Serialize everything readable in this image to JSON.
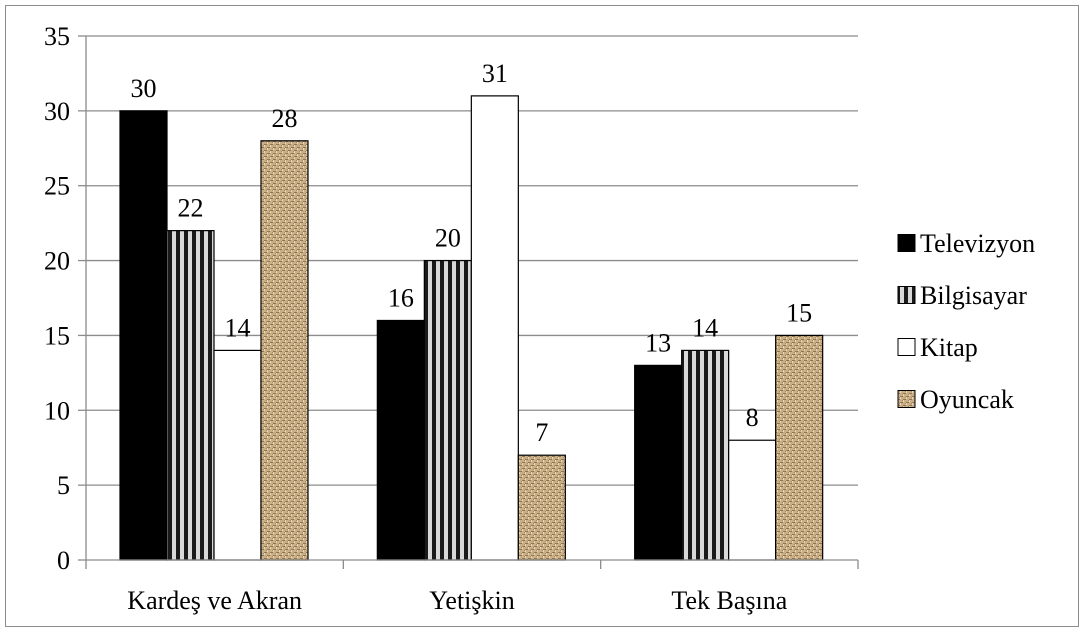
{
  "chart_data": {
    "type": "bar",
    "categories": [
      "Kardeş ve Akran",
      "Yetişkin",
      "Tek Başına"
    ],
    "series": [
      {
        "name": "Televizyon",
        "values": [
          30,
          16,
          13
        ],
        "pattern": "solid-black"
      },
      {
        "name": "Bilgisayar",
        "values": [
          22,
          20,
          14
        ],
        "pattern": "vertical-stripes"
      },
      {
        "name": "Kitap",
        "values": [
          14,
          31,
          8
        ],
        "pattern": "white"
      },
      {
        "name": "Oyuncak",
        "values": [
          28,
          7,
          15
        ],
        "pattern": "burlap-texture"
      }
    ],
    "title": "",
    "xlabel": "",
    "ylabel": "",
    "ylim": [
      0,
      35
    ],
    "yticks": [
      0,
      5,
      10,
      15,
      20,
      25,
      30,
      35
    ],
    "grid": true,
    "data_labels": true,
    "legend_position": "right",
    "colors": {
      "televizyon": "#000000",
      "bilgisayar_stripe_dark": "#1a1a1a",
      "bilgisayar_stripe_light": "#d9d9d9",
      "kitap": "#ffffff",
      "oyuncak_base": "#c9ae86",
      "oyuncak_dark": "#8f7650",
      "gridline": "#8c8c8c",
      "axis": "#8c8c8c"
    }
  }
}
